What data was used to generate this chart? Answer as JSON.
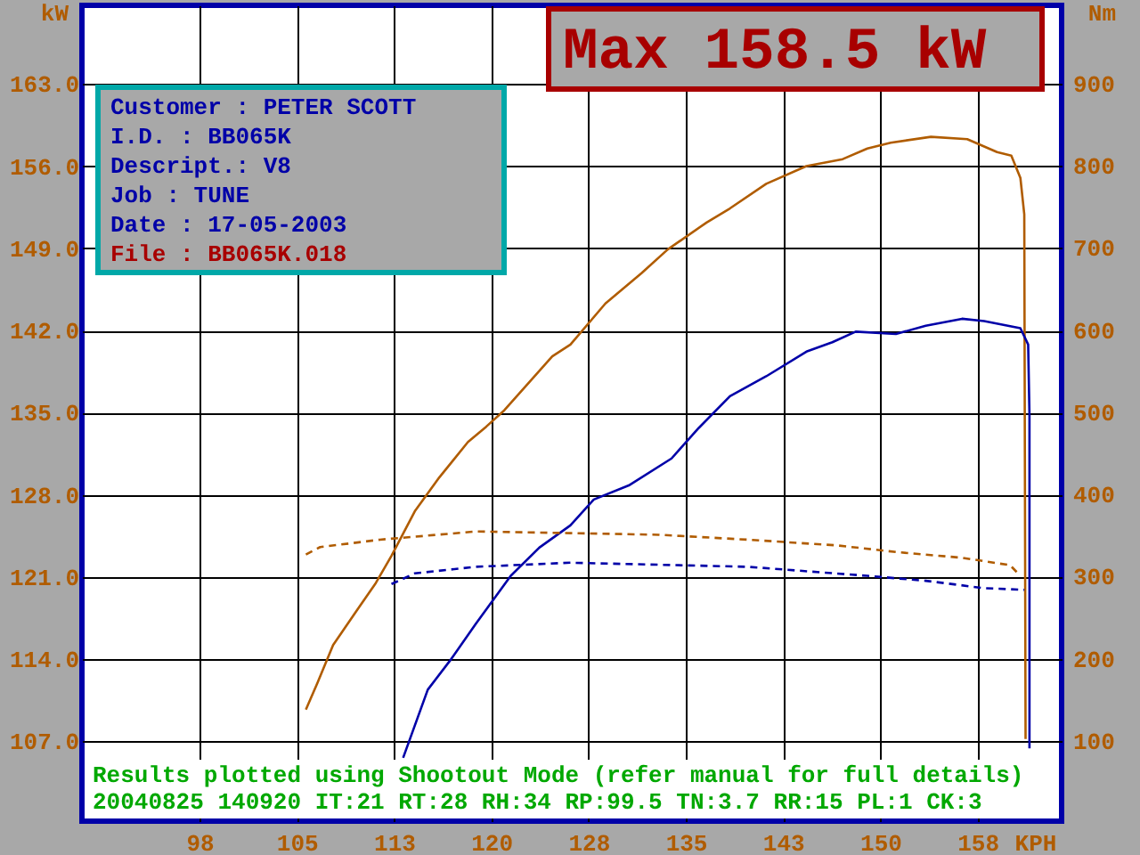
{
  "chart_data": {
    "type": "line",
    "xlabel": "KPH",
    "ylabel": "kW",
    "y2label": "Nm",
    "xlim": [
      88.43,
      163.98
    ],
    "ylim": [
      100.2,
      169.7
    ],
    "y2lim": [
      2.4,
      995.4
    ],
    "xticks": [
      {
        "value": 97.5,
        "label": "98"
      },
      105,
      {
        "value": 112.5,
        "label": "113"
      },
      120,
      {
        "value": 127.5,
        "label": "128"
      },
      135,
      {
        "value": 142.5,
        "label": "143"
      },
      150,
      {
        "value": 157.5,
        "label": "158"
      }
    ],
    "yticks": [
      {
        "value": 107,
        "label": "107.0"
      },
      {
        "value": 114,
        "label": "114.0"
      },
      {
        "value": 121,
        "label": "121.0"
      },
      {
        "value": 128,
        "label": "128.0"
      },
      {
        "value": 135,
        "label": "135.0"
      },
      {
        "value": 142,
        "label": "142.0"
      },
      {
        "value": 149,
        "label": "149.0"
      },
      {
        "value": 156,
        "label": "156.0"
      },
      {
        "value": 163,
        "label": "163.0"
      }
    ],
    "y2ticks": [
      100,
      200,
      300,
      400,
      500,
      600,
      700,
      800,
      900
    ],
    "grid": true,
    "series": [
      {
        "color": "#b05c00",
        "line_style": "solid",
        "x": [
          105.7,
          106.6,
          107.8,
          109.6,
          111.1,
          112.3,
          114.1,
          116.0,
          118.2,
          119.6,
          121.0,
          124.7,
          126.1,
          128.8,
          131.6,
          133.6,
          136.6,
          138.4,
          141.2,
          144.3,
          147.1,
          149.0,
          150.8,
          153.9,
          156.7,
          159.0,
          160.1,
          160.8,
          161.1,
          161.2
        ],
        "values": [
          109.7,
          112.0,
          115.2,
          118.1,
          120.5,
          122.8,
          126.6,
          129.5,
          132.5,
          133.8,
          135.2,
          139.8,
          140.8,
          144.3,
          146.9,
          148.9,
          151.2,
          152.4,
          154.5,
          156.0,
          156.6,
          157.5,
          158.0,
          158.5,
          158.3,
          157.2,
          156.9,
          155.0,
          151.9,
          107.2
        ]
      },
      {
        "color": "#0000a8",
        "line_style": "solid",
        "x": [
          113.2,
          115.1,
          116.9,
          118.8,
          121.5,
          123.7,
          126.1,
          127.9,
          130.6,
          133.9,
          136.0,
          138.4,
          141.2,
          144.3,
          146.3,
          148.1,
          151.2,
          153.5,
          156.3,
          158.0,
          160.8,
          161.4,
          161.5,
          161.5
        ],
        "values": [
          105.6,
          111.4,
          114.0,
          117.0,
          121.1,
          123.5,
          125.4,
          127.6,
          128.8,
          131.1,
          133.7,
          136.4,
          138.1,
          140.2,
          141.0,
          141.9,
          141.7,
          142.4,
          143.0,
          142.8,
          142.2,
          140.8,
          134.8,
          106.4
        ]
      },
      {
        "color": "#b05c00",
        "line_style": "dashed",
        "axis": "y2",
        "x": [
          105.7,
          106.8,
          111.4,
          118.8,
          126.1,
          132.9,
          139.8,
          146.7,
          151.2,
          156.3,
          160.0,
          160.8
        ],
        "values": [
          327,
          336,
          345,
          355,
          353,
          351,
          345,
          338,
          330,
          323,
          314,
          301
        ]
      },
      {
        "color": "#0000a8",
        "line_style": "dashed",
        "axis": "y2",
        "x": [
          112.3,
          114.1,
          118.8,
          126.1,
          139.8,
          149.0,
          153.5,
          158.0,
          161.1
        ],
        "values": [
          291,
          304,
          312,
          317,
          312,
          301,
          295,
          286,
          284
        ]
      }
    ],
    "annotations": [
      "Max 158.5 kW",
      "Customer : PETER SCOTT",
      "I.D.     : BB065K",
      "Descript.: V8",
      "Job      : TUNE",
      "Date     : 17-05-2003",
      "File     : BB065K.018",
      "Results plotted using Shootout Mode (refer manual for full details)",
      "20040825 140920 IT:21 RT:28 RH:34 RP:99.5 TN:3.7 RR:15 PL:1 CK:3"
    ]
  }
}
